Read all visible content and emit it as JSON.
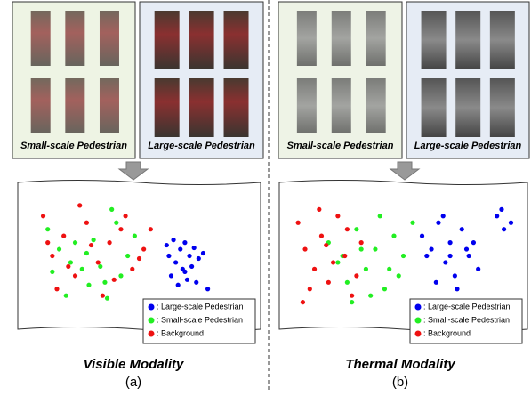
{
  "panels": [
    {
      "small_label": "Small-scale Pedestrian",
      "large_label": "Large-scale Pedestrian",
      "title": "Visible Modality",
      "caption": "(a)",
      "scatter": {
        "type": "scatter",
        "series": [
          {
            "name": ": Large-scale Pedestrian",
            "color": "#0000ee",
            "x": [
              62,
              65,
              68,
              70,
              72,
              74,
              66,
              69,
              73,
              76,
              78,
              64,
              71,
              75,
              67,
              70,
              80,
              63
            ],
            "y": [
              42,
              38,
              45,
              40,
              50,
              44,
              55,
              60,
              58,
              52,
              48,
              65,
              68,
              70,
              72,
              62,
              75,
              50
            ]
          },
          {
            "name": ": Small-scale Pedestrian",
            "color": "#22ee22",
            "x": [
              10,
              15,
              20,
              25,
              30,
              35,
              40,
              45,
              18,
              28,
              38,
              22,
              33,
              48,
              12,
              42,
              27,
              36
            ],
            "y": [
              30,
              45,
              55,
              60,
              38,
              70,
              25,
              50,
              80,
              72,
              15,
              40,
              58,
              35,
              62,
              65,
              48,
              82
            ]
          },
          {
            "name": ": Background",
            "color": "#ee1111",
            "x": [
              8,
              12,
              17,
              22,
              27,
              32,
              37,
              42,
              47,
              52,
              14,
              24,
              34,
              44,
              19,
              29,
              39,
              50,
              55,
              10
            ],
            "y": [
              20,
              50,
              35,
              65,
              25,
              55,
              40,
              30,
              60,
              45,
              75,
              12,
              80,
              20,
              58,
              42,
              68,
              52,
              30,
              40
            ]
          }
        ]
      }
    },
    {
      "small_label": "Small-scale Pedestrian",
      "large_label": "Large-scale Pedestrian",
      "title": "Thermal Modality",
      "caption": "(b)",
      "scatter": {
        "type": "scatter",
        "series": [
          {
            "name": ": Large-scale Pedestrian",
            "color": "#0000ee",
            "x": [
              58,
              62,
              65,
              68,
              70,
              72,
              75,
              78,
              80,
              82,
              64,
              67,
              73,
              77,
              60,
              70,
              90,
              93,
              96,
              92
            ],
            "y": [
              35,
              45,
              25,
              55,
              40,
              65,
              30,
              50,
              40,
              60,
              70,
              20,
              75,
              45,
              50,
              50,
              20,
              30,
              25,
              15
            ]
          },
          {
            "name": ": Small-scale Pedestrian",
            "color": "#22ee22",
            "x": [
              18,
              22,
              26,
              30,
              34,
              38,
              42,
              46,
              50,
              54,
              28,
              36,
              44,
              24,
              40,
              48,
              32
            ],
            "y": [
              40,
              55,
              70,
              30,
              60,
              45,
              75,
              35,
              50,
              25,
              85,
              80,
              60,
              50,
              20,
              65,
              45
            ]
          },
          {
            "name": ": Background",
            "color": "#ee1111",
            "x": [
              5,
              8,
              12,
              15,
              18,
              22,
              25,
              28,
              32,
              10,
              14,
              20,
              26,
              30,
              7,
              17
            ],
            "y": [
              25,
              45,
              60,
              35,
              70,
              20,
              50,
              80,
              40,
              75,
              15,
              55,
              30,
              65,
              85,
              42
            ]
          }
        ]
      }
    }
  ]
}
